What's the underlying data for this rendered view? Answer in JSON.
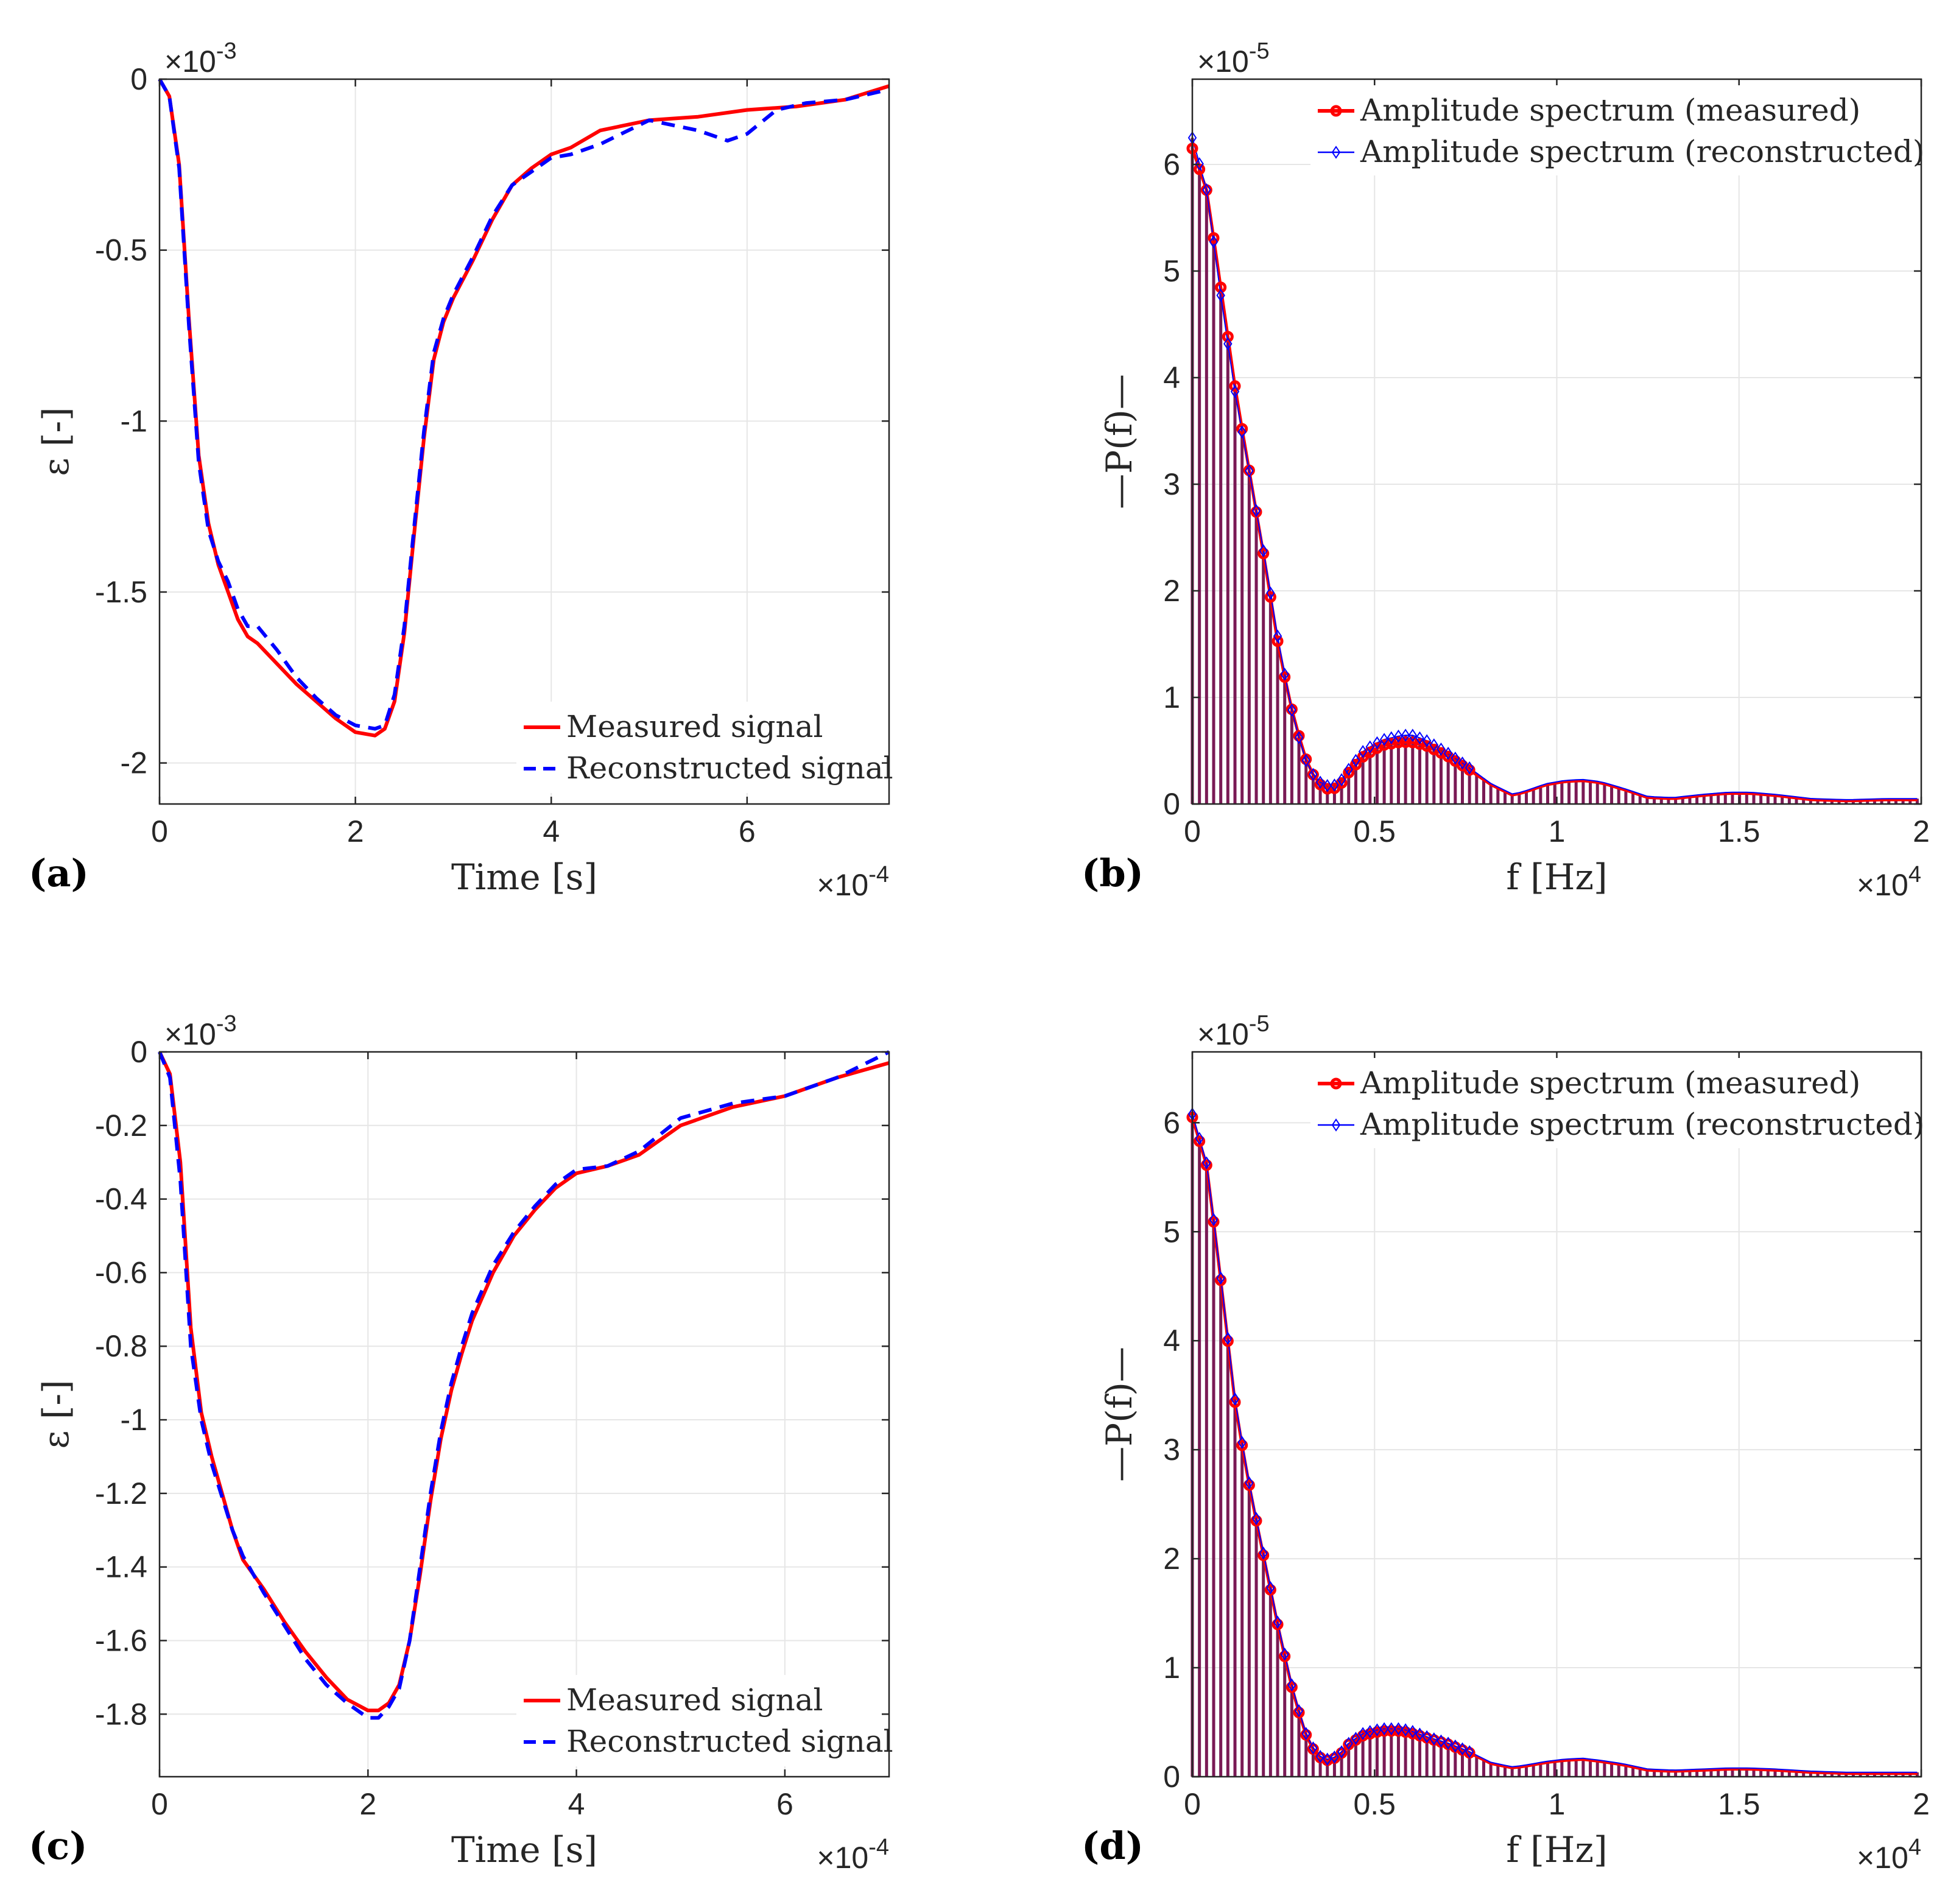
{
  "colors": {
    "measured": "#ff0000",
    "reconstructed": "#0000ff",
    "stem": "#7a1a55",
    "axis": "#262626",
    "grid": "#e6e6e6"
  },
  "chart_data": [
    {
      "panel": "(a)",
      "type": "line",
      "xlabel": "Time [s]",
      "ylabel": "ε [-]",
      "x_multiplier": "×10-4",
      "y_multiplier": "×10-3",
      "xlim": [
        0,
        7.45
      ],
      "ylim": [
        -2.12,
        0
      ],
      "xticks": [
        0,
        2,
        4,
        6
      ],
      "yticks": [
        0,
        -0.5,
        -1,
        -1.5,
        -2
      ],
      "xtick_labels": [
        "0",
        "2",
        "4",
        "6"
      ],
      "ytick_labels": [
        "0",
        "-0.5",
        "-1",
        "-1.5",
        "-2"
      ],
      "legend": [
        "Measured signal",
        "Reconstructed signal"
      ],
      "series": [
        {
          "name": "Measured signal",
          "x": [
            0,
            0.1,
            0.2,
            0.3,
            0.4,
            0.5,
            0.6,
            0.7,
            0.8,
            0.9,
            1.0,
            1.2,
            1.4,
            1.6,
            1.8,
            2.0,
            2.2,
            2.3,
            2.4,
            2.5,
            2.6,
            2.7,
            2.8,
            2.9,
            3.0,
            3.2,
            3.4,
            3.6,
            3.8,
            4.0,
            4.2,
            4.5,
            5.0,
            5.5,
            6.0,
            6.5,
            7.0,
            7.45
          ],
          "y": [
            0,
            -0.05,
            -0.25,
            -0.7,
            -1.1,
            -1.3,
            -1.42,
            -1.5,
            -1.58,
            -1.63,
            -1.65,
            -1.71,
            -1.77,
            -1.82,
            -1.87,
            -1.91,
            -1.92,
            -1.9,
            -1.82,
            -1.62,
            -1.33,
            -1.05,
            -0.82,
            -0.71,
            -0.64,
            -0.53,
            -0.41,
            -0.31,
            -0.26,
            -0.22,
            -0.2,
            -0.15,
            -0.12,
            -0.11,
            -0.09,
            -0.08,
            -0.06,
            -0.02
          ]
        },
        {
          "name": "Reconstructed signal",
          "x": [
            0,
            0.1,
            0.2,
            0.3,
            0.4,
            0.5,
            0.6,
            0.7,
            0.8,
            0.9,
            1.0,
            1.2,
            1.4,
            1.6,
            1.8,
            2.0,
            2.2,
            2.3,
            2.4,
            2.5,
            2.6,
            2.7,
            2.8,
            2.9,
            3.0,
            3.2,
            3.4,
            3.6,
            3.8,
            4.0,
            4.2,
            4.5,
            5.0,
            5.5,
            5.8,
            6.0,
            6.3,
            6.6,
            7.0,
            7.45
          ],
          "y": [
            0,
            -0.05,
            -0.26,
            -0.72,
            -1.12,
            -1.32,
            -1.41,
            -1.47,
            -1.55,
            -1.6,
            -1.6,
            -1.67,
            -1.75,
            -1.81,
            -1.86,
            -1.89,
            -1.9,
            -1.89,
            -1.8,
            -1.6,
            -1.31,
            -1.03,
            -0.8,
            -0.7,
            -0.63,
            -0.52,
            -0.4,
            -0.31,
            -0.27,
            -0.23,
            -0.22,
            -0.19,
            -0.12,
            -0.15,
            -0.18,
            -0.16,
            -0.09,
            -0.07,
            -0.06,
            -0.03
          ]
        }
      ]
    },
    {
      "panel": "(b)",
      "type": "stem",
      "xlabel": "f [Hz]",
      "ylabel": "—P(f)—",
      "x_multiplier": "×104",
      "y_multiplier": "×10-5",
      "xlim": [
        0,
        2
      ],
      "ylim": [
        0,
        6.8
      ],
      "xticks": [
        0,
        0.5,
        1,
        1.5,
        2
      ],
      "yticks": [
        0,
        1,
        2,
        3,
        4,
        5,
        6
      ],
      "xtick_labels": [
        "0",
        "0.5",
        "1",
        "1.5",
        "2"
      ],
      "ytick_labels": [
        "0",
        "1",
        "2",
        "3",
        "4",
        "5",
        "6"
      ],
      "legend": [
        "Amplitude spectrum (measured)",
        "Amplitude spectrum (reconstructed)"
      ],
      "envelope_measured": {
        "f": [
          0,
          0.04,
          0.08,
          0.12,
          0.16,
          0.2,
          0.24,
          0.28,
          0.32,
          0.36,
          0.4,
          0.43,
          0.47,
          0.52,
          0.57,
          0.6,
          0.64,
          0.7,
          0.76,
          0.82,
          0.88,
          0.92,
          0.97,
          1.02,
          1.07,
          1.12,
          1.18,
          1.25,
          1.32,
          1.4,
          1.47,
          1.53,
          1.6,
          1.7,
          1.8,
          1.9,
          2.0
        ],
        "P": [
          6.15,
          5.75,
          4.8,
          3.85,
          3.05,
          2.25,
          1.4,
          0.78,
          0.33,
          0.14,
          0.15,
          0.3,
          0.45,
          0.55,
          0.58,
          0.58,
          0.55,
          0.45,
          0.32,
          0.18,
          0.08,
          0.12,
          0.18,
          0.21,
          0.22,
          0.2,
          0.14,
          0.06,
          0.05,
          0.08,
          0.1,
          0.1,
          0.08,
          0.04,
          0.03,
          0.04,
          0.04
        ]
      },
      "envelope_reconstructed": {
        "f": [
          0,
          0.04,
          0.08,
          0.12,
          0.16,
          0.2,
          0.24,
          0.28,
          0.32,
          0.36,
          0.4,
          0.43,
          0.47,
          0.52,
          0.57,
          0.6,
          0.64,
          0.7,
          0.76,
          0.82,
          0.88,
          0.92,
          0.97,
          1.02,
          1.07,
          1.12,
          1.18,
          1.25,
          1.32,
          1.4,
          1.47,
          1.53,
          1.6,
          1.7,
          1.8,
          1.9,
          2.0
        ],
        "P": [
          6.25,
          5.75,
          4.72,
          3.8,
          3.05,
          2.28,
          1.45,
          0.76,
          0.32,
          0.17,
          0.18,
          0.33,
          0.5,
          0.6,
          0.64,
          0.65,
          0.6,
          0.48,
          0.34,
          0.19,
          0.09,
          0.13,
          0.19,
          0.22,
          0.23,
          0.21,
          0.15,
          0.07,
          0.06,
          0.09,
          0.11,
          0.11,
          0.09,
          0.05,
          0.04,
          0.05,
          0.05
        ]
      }
    },
    {
      "panel": "(c)",
      "type": "line",
      "xlabel": "Time [s]",
      "ylabel": "ε [-]",
      "x_multiplier": "×10-4",
      "y_multiplier": "×10-3",
      "xlim": [
        0,
        7
      ],
      "ylim": [
        -1.97,
        0
      ],
      "xticks": [
        0,
        2,
        4,
        6
      ],
      "yticks": [
        0,
        -0.2,
        -0.4,
        -0.6,
        -0.8,
        -1,
        -1.2,
        -1.4,
        -1.6,
        -1.8
      ],
      "xtick_labels": [
        "0",
        "2",
        "4",
        "6"
      ],
      "ytick_labels": [
        "0",
        "-0.2",
        "-0.4",
        "-0.6",
        "-0.8",
        "-1",
        "-1.2",
        "-1.4",
        "-1.6",
        "-1.8"
      ],
      "legend": [
        "Measured signal",
        "Reconstructed signal"
      ],
      "series": [
        {
          "name": "Measured signal",
          "x": [
            0,
            0.1,
            0.2,
            0.3,
            0.4,
            0.5,
            0.6,
            0.7,
            0.8,
            0.9,
            1.0,
            1.2,
            1.4,
            1.6,
            1.8,
            2.0,
            2.1,
            2.2,
            2.3,
            2.4,
            2.5,
            2.6,
            2.7,
            2.8,
            2.9,
            3.0,
            3.2,
            3.4,
            3.6,
            3.8,
            4.0,
            4.3,
            4.6,
            5.0,
            5.5,
            6.0,
            6.5,
            7.0
          ],
          "y": [
            0,
            -0.06,
            -0.3,
            -0.75,
            -0.98,
            -1.1,
            -1.2,
            -1.3,
            -1.38,
            -1.42,
            -1.46,
            -1.55,
            -1.63,
            -1.7,
            -1.76,
            -1.79,
            -1.79,
            -1.77,
            -1.72,
            -1.6,
            -1.42,
            -1.22,
            -1.05,
            -0.92,
            -0.82,
            -0.73,
            -0.6,
            -0.5,
            -0.43,
            -0.37,
            -0.33,
            -0.31,
            -0.28,
            -0.2,
            -0.15,
            -0.12,
            -0.07,
            -0.03
          ]
        },
        {
          "name": "Reconstructed signal",
          "x": [
            0,
            0.1,
            0.2,
            0.3,
            0.4,
            0.5,
            0.6,
            0.7,
            0.8,
            0.9,
            1.0,
            1.2,
            1.4,
            1.6,
            1.8,
            2.0,
            2.1,
            2.2,
            2.3,
            2.4,
            2.5,
            2.6,
            2.7,
            2.8,
            2.9,
            3.0,
            3.2,
            3.4,
            3.6,
            3.8,
            4.0,
            4.3,
            4.6,
            5.0,
            5.5,
            6.0,
            6.5,
            7.0
          ],
          "y": [
            0,
            -0.07,
            -0.35,
            -0.8,
            -1.0,
            -1.12,
            -1.21,
            -1.3,
            -1.37,
            -1.42,
            -1.47,
            -1.56,
            -1.65,
            -1.72,
            -1.77,
            -1.81,
            -1.81,
            -1.78,
            -1.73,
            -1.6,
            -1.4,
            -1.2,
            -1.03,
            -0.9,
            -0.8,
            -0.71,
            -0.58,
            -0.49,
            -0.42,
            -0.36,
            -0.32,
            -0.31,
            -0.27,
            -0.18,
            -0.14,
            -0.12,
            -0.07,
            0
          ]
        }
      ]
    },
    {
      "panel": "(d)",
      "type": "stem",
      "xlabel": "f [Hz]",
      "ylabel": "—P(f)—",
      "x_multiplier": "×104",
      "y_multiplier": "×10-5",
      "xlim": [
        0,
        2
      ],
      "ylim": [
        0,
        6.65
      ],
      "xticks": [
        0,
        0.5,
        1,
        1.5,
        2
      ],
      "yticks": [
        0,
        1,
        2,
        3,
        4,
        5,
        6
      ],
      "xtick_labels": [
        "0",
        "0.5",
        "1",
        "1.5",
        "2"
      ],
      "ytick_labels": [
        "0",
        "1",
        "2",
        "3",
        "4",
        "5",
        "6"
      ],
      "legend": [
        "Amplitude spectrum (measured)",
        "Amplitude spectrum (reconstructed)"
      ],
      "envelope_measured": {
        "f": [
          0,
          0.04,
          0.08,
          0.12,
          0.16,
          0.2,
          0.24,
          0.28,
          0.32,
          0.36,
          0.4,
          0.43,
          0.47,
          0.52,
          0.57,
          0.6,
          0.64,
          0.7,
          0.76,
          0.82,
          0.88,
          0.92,
          0.97,
          1.02,
          1.07,
          1.12,
          1.18,
          1.25,
          1.32,
          1.4,
          1.47,
          1.53,
          1.6,
          1.7,
          1.8,
          1.9,
          2.0
        ],
        "P": [
          6.05,
          5.6,
          4.5,
          3.35,
          2.6,
          1.95,
          1.3,
          0.72,
          0.3,
          0.14,
          0.18,
          0.3,
          0.38,
          0.42,
          0.42,
          0.4,
          0.36,
          0.3,
          0.22,
          0.12,
          0.08,
          0.1,
          0.13,
          0.15,
          0.16,
          0.14,
          0.11,
          0.06,
          0.05,
          0.06,
          0.07,
          0.07,
          0.06,
          0.04,
          0.03,
          0.03,
          0.03
        ]
      },
      "envelope_reconstructed": {
        "f": [
          0,
          0.04,
          0.08,
          0.12,
          0.16,
          0.2,
          0.24,
          0.28,
          0.32,
          0.36,
          0.4,
          0.43,
          0.47,
          0.52,
          0.57,
          0.6,
          0.64,
          0.7,
          0.76,
          0.82,
          0.88,
          0.92,
          0.97,
          1.02,
          1.07,
          1.12,
          1.18,
          1.25,
          1.32,
          1.4,
          1.47,
          1.53,
          1.6,
          1.7,
          1.8,
          1.9,
          2.0
        ],
        "P": [
          6.08,
          5.62,
          4.52,
          3.38,
          2.62,
          1.97,
          1.32,
          0.74,
          0.31,
          0.15,
          0.19,
          0.31,
          0.4,
          0.44,
          0.44,
          0.42,
          0.37,
          0.31,
          0.23,
          0.13,
          0.09,
          0.11,
          0.14,
          0.16,
          0.17,
          0.15,
          0.12,
          0.07,
          0.06,
          0.07,
          0.08,
          0.08,
          0.07,
          0.05,
          0.04,
          0.04,
          0.04
        ]
      }
    }
  ]
}
